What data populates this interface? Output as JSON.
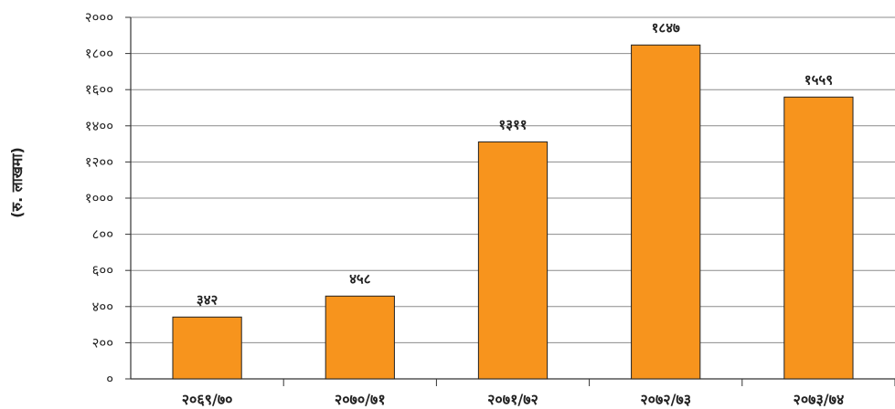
{
  "chart_data": {
    "type": "bar",
    "categories": [
      "२०६९/७०",
      "२०७०/७१",
      "२०७१/७२",
      "२०७२/७३",
      "२०७३/७४"
    ],
    "values": [
      342,
      458,
      1311,
      1847,
      1559
    ],
    "value_labels": [
      "३४२",
      "४५८",
      "१३११",
      "१८४७",
      "१५५९"
    ],
    "yticks": [
      0,
      200,
      400,
      600,
      800,
      1000,
      1200,
      1400,
      1600,
      1800,
      2000
    ],
    "ytick_labels": [
      "०",
      "२००",
      "४००",
      "६००",
      "८००",
      "१०००",
      "१२००",
      "१४००",
      "१६००",
      "१८००",
      "२०००"
    ],
    "ylim": [
      0,
      2000
    ],
    "ylabel": "(रु. लाखमा)",
    "xlabel": "",
    "title": "",
    "grid": true,
    "bar_color": "#F7941D",
    "bar_edge_color": "#222222"
  }
}
